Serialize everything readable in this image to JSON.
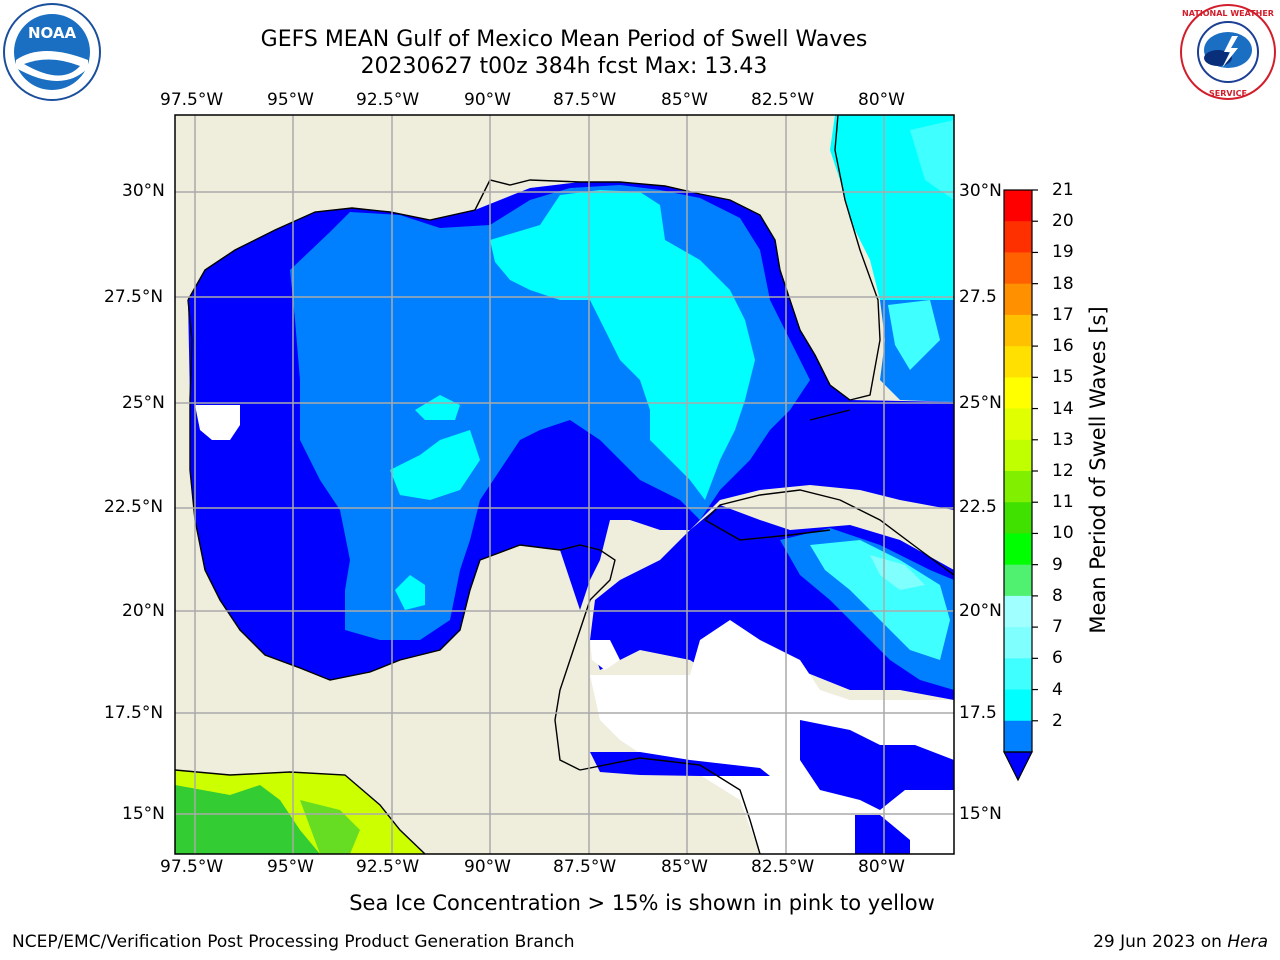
{
  "title": {
    "line1": "GEFS MEAN Gulf of Mexico Mean Period of Swell Waves",
    "line2": "20230627 t00z 384h fcst   Max: 13.43"
  },
  "logos": {
    "left": {
      "name": "noaa-logo",
      "text": "NOAA"
    },
    "right": {
      "name": "nws-logo",
      "text": "NATIONAL WEATHER SERVICE"
    }
  },
  "map": {
    "lon_ticks": [
      "97.5°W",
      "95°W",
      "92.5°W",
      "90°W",
      "87.5°W",
      "85°W",
      "82.5°W",
      "80°W"
    ],
    "lat_ticks_left": [
      "30°N",
      "27.5°N",
      "25°N",
      "22.5°N",
      "20°N",
      "17.5°N",
      "15°N"
    ],
    "lat_ticks_right": [
      "30°N",
      "27.5",
      "25°N",
      "22.5",
      "20°N",
      "17.5",
      "15°N"
    ],
    "colors": {
      "land": "#efeddc",
      "ocean_low": "#0000ff",
      "ocean_2_4": "#0080ff",
      "ocean_4_6": "#00ffff",
      "ocean_6_8": "#40ffff",
      "green": "#33cc33",
      "yellowgreen": "#ccff00",
      "grid": "#aaaaaa"
    }
  },
  "colorbar": {
    "label": "Mean Period of Swell Waves [s]",
    "ticks": [
      "2",
      "4",
      "6",
      "7",
      "8",
      "9",
      "10",
      "11",
      "12",
      "13",
      "14",
      "15",
      "16",
      "17",
      "18",
      "19",
      "20",
      "21"
    ],
    "colors": [
      "#0080ff",
      "#00ffff",
      "#40ffff",
      "#80ffff",
      "#a0ffff",
      "#50f070",
      "#00ff00",
      "#40e000",
      "#80f000",
      "#c0ff00",
      "#e0ff00",
      "#ffff00",
      "#ffe000",
      "#ffc000",
      "#ff9000",
      "#ff6000",
      "#ff3000",
      "#ff0000"
    ],
    "extend_color": "#0000ff"
  },
  "footer": {
    "note": "Sea Ice Concentration > 15% is shown in pink to yellow",
    "credit": "NCEP/EMC/Verification Post Processing Product Generation Branch",
    "date": "29 Jun 2023 on",
    "host": "Hera"
  }
}
